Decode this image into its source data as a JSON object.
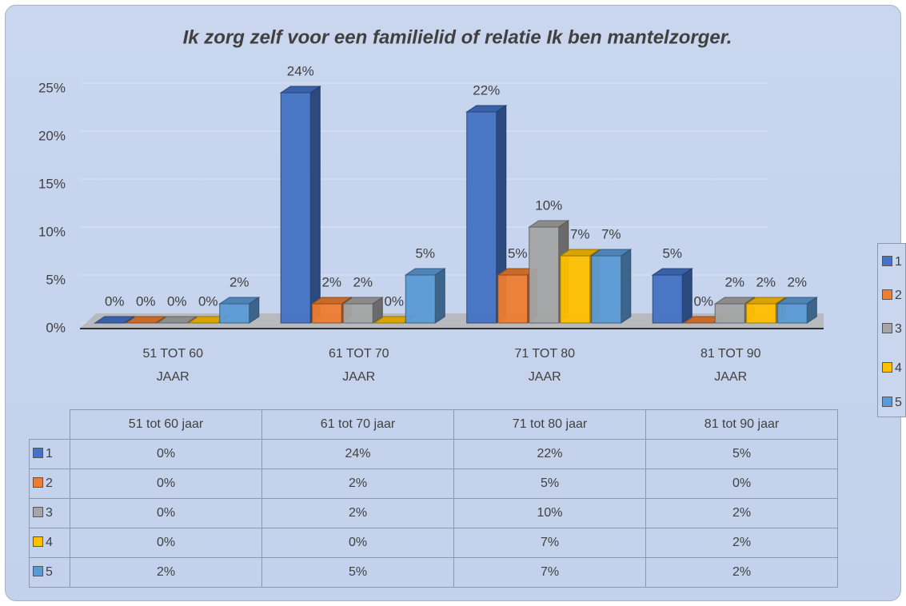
{
  "chart_data": {
    "type": "bar3d",
    "title": "Ik zorg zelf voor een familielid of relatie Ik ben mantelzorger.",
    "categories": [
      "51 TOT 60 JAAR",
      "61 TOT 70 JAAR",
      "71 TOT 80 JAAR",
      "81 TOT 90 JAAR"
    ],
    "table_columns": [
      "51 tot 60 jaar",
      "61 tot 70 jaar",
      "71 tot 80 jaar",
      "81 tot 90 jaar"
    ],
    "series": [
      {
        "name": "1",
        "color": "#4472c4",
        "values": [
          0,
          24,
          22,
          5
        ],
        "value_labels": [
          "0%",
          "24%",
          "22%",
          "5%"
        ]
      },
      {
        "name": "2",
        "color": "#ed7d31",
        "values": [
          0,
          2,
          5,
          0
        ],
        "value_labels": [
          "0%",
          "2%",
          "5%",
          "0%"
        ]
      },
      {
        "name": "3",
        "color": "#a5a5a5",
        "values": [
          0,
          2,
          10,
          2
        ],
        "value_labels": [
          "0%",
          "2%",
          "10%",
          "2%"
        ]
      },
      {
        "name": "4",
        "color": "#ffc000",
        "values": [
          0,
          0,
          7,
          2
        ],
        "value_labels": [
          "0%",
          "0%",
          "7%",
          "2%"
        ]
      },
      {
        "name": "5",
        "color": "#5b9bd5",
        "values": [
          2,
          5,
          7,
          2
        ],
        "value_labels": [
          "2%",
          "5%",
          "7%",
          "2%"
        ]
      }
    ],
    "ylim": [
      0,
      25
    ],
    "yticks": [
      {
        "value": 0,
        "label": "0%"
      },
      {
        "value": 5,
        "label": "5%"
      },
      {
        "value": 10,
        "label": "10%"
      },
      {
        "value": 15,
        "label": "15%"
      },
      {
        "value": 20,
        "label": "20%"
      },
      {
        "value": 25,
        "label": "25%"
      }
    ],
    "grid": true,
    "legend": "right"
  }
}
